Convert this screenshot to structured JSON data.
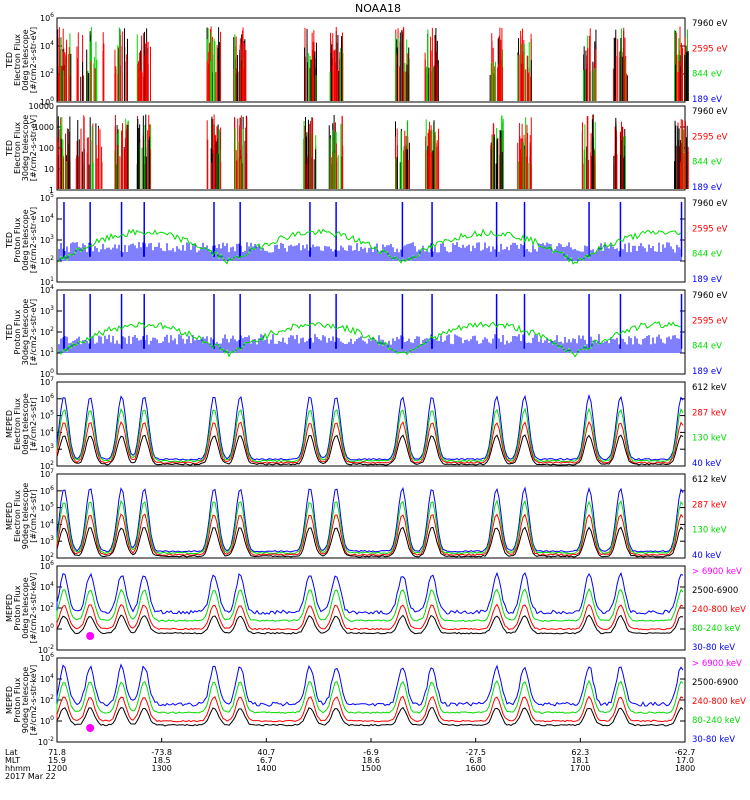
{
  "title": "NOAA18",
  "colors": {
    "black": "#000000",
    "red": "#ff0000",
    "green": "#00dd00",
    "blue": "#0000ff",
    "magenta": "#ff00ff",
    "frame": "#000000"
  },
  "panels": [
    {
      "id": "ted-electron-0",
      "ylabel": [
        "TED",
        "Electron Flux",
        "0deg telescope",
        "[#/cm2-s-str-eV]"
      ],
      "yticks": [
        "10^0",
        "10^2",
        "10^4",
        "10^6"
      ],
      "legend": [
        {
          "label": "7960 eV",
          "color": "black"
        },
        {
          "label": "2595 eV",
          "color": "red"
        },
        {
          "label": "844 eV",
          "color": "green"
        },
        {
          "label": "189 eV",
          "color": "blue"
        }
      ]
    },
    {
      "id": "ted-electron-30",
      "ylabel": [
        "TED",
        "Electron Flux",
        "30deg telescope",
        "[#/cm2-s-str-eV]"
      ],
      "yticks": [
        "1",
        "10",
        "100",
        "1000",
        "10000"
      ],
      "legend": [
        {
          "label": "7960 eV",
          "color": "black"
        },
        {
          "label": "2595 eV",
          "color": "red"
        },
        {
          "label": "844 eV",
          "color": "green"
        },
        {
          "label": "189 eV",
          "color": "blue"
        }
      ]
    },
    {
      "id": "ted-proton-0",
      "ylabel": [
        "TED",
        "Proton Flux",
        "0deg telescope",
        "[#/cm2-s-str-eV]"
      ],
      "yticks": [
        "10^1",
        "10^2",
        "10^3",
        "10^4",
        "10^5"
      ],
      "legend": [
        {
          "label": "7960 eV",
          "color": "black"
        },
        {
          "label": "2595 eV",
          "color": "red"
        },
        {
          "label": "844 eV",
          "color": "green"
        },
        {
          "label": "189 eV",
          "color": "blue"
        }
      ]
    },
    {
      "id": "ted-proton-30",
      "ylabel": [
        "TED",
        "Proton Flux",
        "30deg telescope",
        "[#/cm2-s-str-eV]"
      ],
      "yticks": [
        "10^0",
        "10^1",
        "10^2",
        "10^3",
        "10^4"
      ],
      "legend": [
        {
          "label": "7960 eV",
          "color": "black"
        },
        {
          "label": "2595 eV",
          "color": "red"
        },
        {
          "label": "844 eV",
          "color": "green"
        },
        {
          "label": "189 eV",
          "color": "blue"
        }
      ]
    },
    {
      "id": "meped-electron-0",
      "ylabel": [
        "MEPED",
        "Electron Flux",
        "0deg telescope",
        "[#/cm2-s-str]"
      ],
      "yticks": [
        "10^2",
        "10^3",
        "10^4",
        "10^5",
        "10^6",
        "10^7"
      ],
      "legend": [
        {
          "label": "612 keV",
          "color": "black"
        },
        {
          "label": "287 keV",
          "color": "red"
        },
        {
          "label": "130 keV",
          "color": "green"
        },
        {
          "label": "40 keV",
          "color": "blue"
        }
      ]
    },
    {
      "id": "meped-electron-90",
      "ylabel": [
        "MEPED",
        "Electron Flux",
        "90deg telescope",
        "[#/cm2-s-str]"
      ],
      "yticks": [
        "10^2",
        "10^3",
        "10^4",
        "10^5",
        "10^6",
        "10^7"
      ],
      "legend": [
        {
          "label": "612 keV",
          "color": "black"
        },
        {
          "label": "287 keV",
          "color": "red"
        },
        {
          "label": "130 keV",
          "color": "green"
        },
        {
          "label": "40 keV",
          "color": "blue"
        }
      ]
    },
    {
      "id": "meped-proton-0",
      "ylabel": [
        "MEPED",
        "Proton Flux",
        "0deg telescope",
        "[#/cm2-s-str-keV]"
      ],
      "yticks": [
        "10^-2",
        "10^0",
        "10^2",
        "10^4",
        "10^6"
      ],
      "legend": [
        {
          "label": "> 6900 keV",
          "color": "magenta"
        },
        {
          "label": "2500-6900",
          "color": "black"
        },
        {
          "label": "240-800 keV",
          "color": "red"
        },
        {
          "label": "80-240 keV",
          "color": "green"
        },
        {
          "label": "30-80 keV",
          "color": "blue"
        }
      ]
    },
    {
      "id": "meped-proton-90",
      "ylabel": [
        "MEPED",
        "Proton Flux",
        "90deg telescope",
        "[#/cm2-s-str-keV]"
      ],
      "yticks": [
        "10^-2",
        "10^0",
        "10^2",
        "10^4",
        "10^6"
      ],
      "legend": [
        {
          "label": "> 6900 keV",
          "color": "magenta"
        },
        {
          "label": "2500-6900",
          "color": "black"
        },
        {
          "label": "240-800 keV",
          "color": "red"
        },
        {
          "label": "80-240 keV",
          "color": "green"
        },
        {
          "label": "30-80 keV",
          "color": "blue"
        }
      ]
    }
  ],
  "footer": {
    "row_labels": [
      "Lat",
      "MLT",
      "hhmm",
      "2017 Mar 22"
    ],
    "ticks": [
      {
        "lat": "71.8",
        "mlt": "15.9",
        "hhmm": "1200"
      },
      {
        "lat": "-73.8",
        "mlt": "18.5",
        "hhmm": "1300"
      },
      {
        "lat": "40.7",
        "mlt": "6.7",
        "hhmm": "1400"
      },
      {
        "lat": "-6.9",
        "mlt": "18.6",
        "hhmm": "1500"
      },
      {
        "lat": "-27.5",
        "mlt": "6.8",
        "hhmm": "1600"
      },
      {
        "lat": "62.3",
        "mlt": "18.1",
        "hhmm": "1700"
      },
      {
        "lat": "-62.7",
        "mlt": "17.0",
        "hhmm": "1800"
      }
    ]
  },
  "chart_data": {
    "type": "line",
    "title": "NOAA18",
    "x": [
      "1200",
      "1300",
      "1400",
      "1500",
      "1600",
      "1700",
      "1800"
    ],
    "xlabel": "hhmm",
    "scale": "log",
    "passes": [
      {
        "time": "1204",
        "kind": "auroral"
      },
      {
        "time": "1219",
        "kind": "saa"
      },
      {
        "time": "1237",
        "kind": "auroral"
      },
      {
        "time": "1250",
        "kind": "auroral"
      },
      {
        "time": "1330",
        "kind": "auroral"
      },
      {
        "time": "1345",
        "kind": "auroral"
      },
      {
        "time": "1425",
        "kind": "auroral"
      },
      {
        "time": "1440",
        "kind": "auroral"
      },
      {
        "time": "1518",
        "kind": "auroral"
      },
      {
        "time": "1535",
        "kind": "auroral"
      },
      {
        "time": "1612",
        "kind": "auroral"
      },
      {
        "time": "1628",
        "kind": "auroral"
      },
      {
        "time": "1705",
        "kind": "auroral"
      },
      {
        "time": "1723",
        "kind": "auroral"
      },
      {
        "time": "1758",
        "kind": "auroral"
      }
    ]
  }
}
